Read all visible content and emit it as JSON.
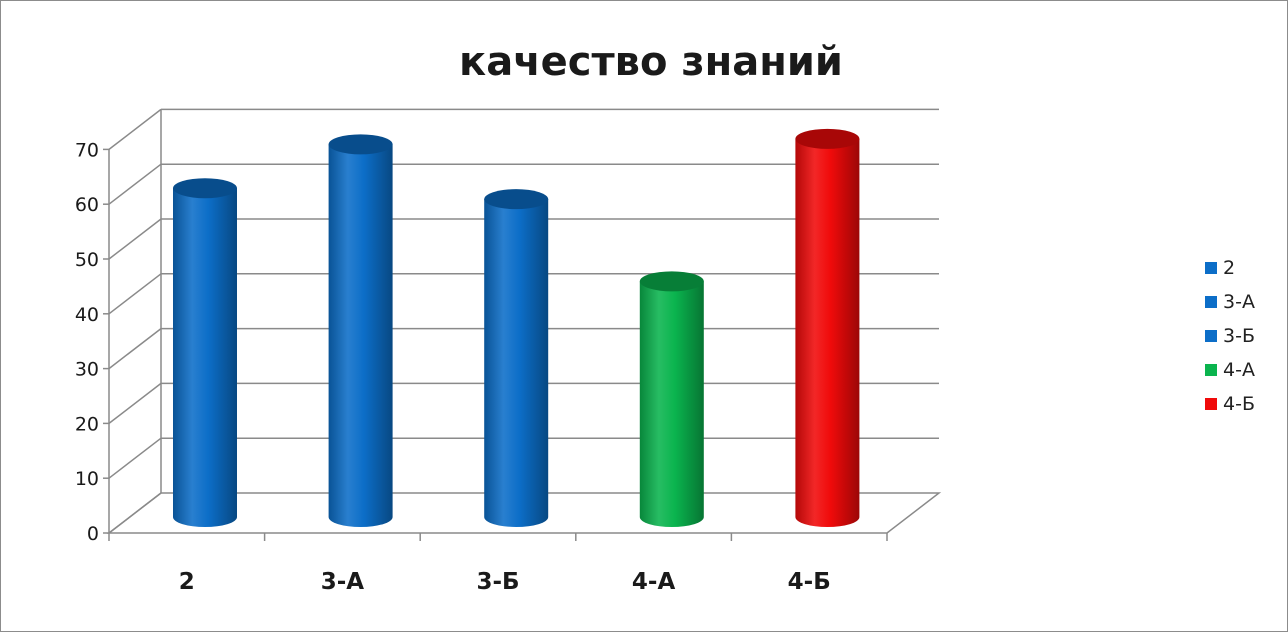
{
  "chart_data": {
    "type": "bar",
    "title": "качество знаний",
    "xlabel": "",
    "ylabel": "",
    "categories": [
      "2",
      "3-А",
      "3-Б",
      "4-А",
      "4-Б"
    ],
    "values": [
      60,
      68,
      58,
      43,
      69
    ],
    "colors": [
      "#0c6ec8",
      "#0c6ec8",
      "#0c6ec8",
      "#0ab44e",
      "#f00a0a"
    ],
    "ylim": [
      0,
      70
    ],
    "yticks": [
      0,
      10,
      20,
      30,
      40,
      50,
      60,
      70
    ],
    "grid": true,
    "style": "3d-cylinder",
    "legend": {
      "position": "right",
      "entries": [
        {
          "label": "2",
          "color": "#0c6ec8"
        },
        {
          "label": "3-А",
          "color": "#0c6ec8"
        },
        {
          "label": "3-Б",
          "color": "#0c6ec8"
        },
        {
          "label": "4-А",
          "color": "#0ab44e"
        },
        {
          "label": "4-Б",
          "color": "#f00a0a"
        }
      ]
    }
  }
}
